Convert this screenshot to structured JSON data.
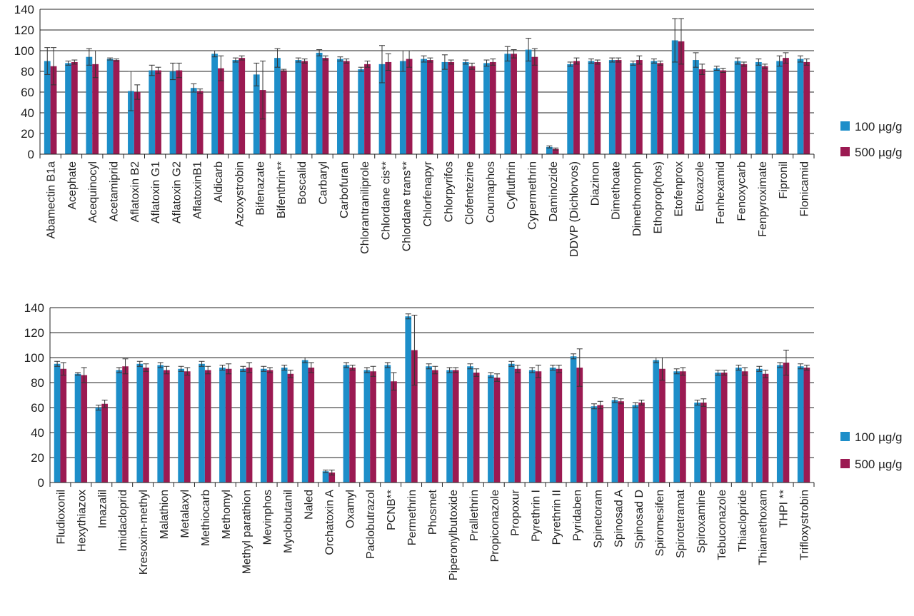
{
  "colors": {
    "series1": "#1d8ec9",
    "series2": "#9b1a52",
    "grid": "#222222",
    "error": "#333333"
  },
  "chart_data": [
    {
      "type": "bar",
      "ylim": [
        0,
        140
      ],
      "yticks": [
        0,
        20,
        40,
        60,
        80,
        100,
        120,
        140
      ],
      "grid": true,
      "legend_position": "right",
      "error_bars": true,
      "categories": [
        "Abamectin B1a",
        "Acephate",
        "Acequinocyl",
        "Acetamiprid",
        "Aflatoxin B2",
        "Aflatoxin G1",
        "Aflatoxin G2",
        "AflatoxinB1",
        "Aldicarb",
        "Azoxystrobin",
        "Bifenazate",
        "Bifenthrin**",
        "Boscalid",
        "Carbaryl",
        "Carbofuran",
        "Chlorantraniliprole",
        "Chlordane cis**",
        "Chlordane trans**",
        "Chlorfenapyr",
        "Chlorpyrifos",
        "Clofentezine",
        "Coumaphos",
        "Cyfluthrin",
        "Cypermethrin",
        "Daminozide",
        "DDVP (Dichlorvos)",
        "Diazinon",
        "Dimethoate",
        "Dimethomorph",
        "Ethoprop(hos)",
        "Etofenprox",
        "Etoxazole",
        "Fenhexamid",
        "Fenoxycarb",
        "Fenpyroximate",
        "Fipronil",
        "Flonicamid"
      ],
      "series": [
        {
          "name": "100 µg/g",
          "values": [
            90,
            88,
            94,
            92,
            61,
            81,
            80,
            64,
            97,
            91,
            77,
            93,
            91,
            98,
            92,
            82,
            87,
            90,
            92,
            89,
            89,
            88,
            97,
            101,
            7,
            87,
            90,
            91,
            88,
            90,
            110,
            91,
            83,
            90,
            89,
            90,
            92
          ],
          "errors": [
            13,
            2,
            8,
            1,
            19,
            5,
            8,
            4,
            3,
            2,
            11,
            9,
            2,
            3,
            2,
            2,
            18,
            10,
            3,
            7,
            2,
            3,
            7,
            11,
            1,
            2,
            2,
            2,
            2,
            2,
            21,
            7,
            2,
            3,
            3,
            5,
            3
          ]
        },
        {
          "name": "500 µg/g",
          "values": [
            85,
            89,
            87,
            91,
            60,
            81,
            81,
            61,
            83,
            93,
            62,
            81,
            90,
            93,
            90,
            87,
            89,
            92,
            91,
            89,
            85,
            89,
            97,
            94,
            5,
            90,
            89,
            91,
            91,
            88,
            109,
            82,
            81,
            87,
            85,
            93,
            89
          ],
          "errors": [
            18,
            2,
            13,
            1,
            7,
            3,
            7,
            2,
            12,
            2,
            28,
            1,
            2,
            2,
            2,
            3,
            8,
            8,
            2,
            2,
            3,
            3,
            4,
            8,
            1,
            3,
            2,
            2,
            4,
            2,
            22,
            5,
            2,
            2,
            2,
            5,
            3
          ]
        }
      ]
    },
    {
      "type": "bar",
      "ylim": [
        0,
        140
      ],
      "yticks": [
        0,
        20,
        40,
        60,
        80,
        100,
        120,
        140
      ],
      "grid": true,
      "legend_position": "right",
      "error_bars": true,
      "categories": [
        "Fludioxonil",
        "Hexythiazox",
        "Imazalil",
        "Imidacloprid",
        "Kresoxim-methyl",
        "Malathion",
        "Metalaxyl",
        "Methiocarb",
        "Methomyl",
        "Methyl parathion",
        "Mevinphos",
        "Myclobutanil",
        "Naled",
        "Orchatoxin A",
        "Oxamyl",
        "Paclobutrazol",
        "PCNB**",
        "Permethrin",
        "Phosmet",
        "Piperonylbutoxide",
        "Prallethrin",
        "Propiconazole",
        "Propoxur",
        "Pyrethrin I",
        "Pyrethrin II",
        "Pyridaben",
        "Spinetoram",
        "Spinosad A",
        "Spinosad D",
        "Spiromesifen",
        "Spirotetramat",
        "Spiroxamine",
        "Tebuconazole",
        "Thiaclopride",
        "Thiamethoxam",
        "THPI **",
        "Trifloxystrobin"
      ],
      "series": [
        {
          "name": "100 µg/g",
          "values": [
            95,
            87,
            60,
            90,
            95,
            94,
            91,
            95,
            92,
            91,
            91,
            92,
            98,
            9,
            94,
            90,
            94,
            133,
            93,
            90,
            93,
            86,
            95,
            90,
            92,
            101,
            61,
            66,
            62,
            98,
            89,
            64,
            88,
            92,
            91,
            94,
            93
          ],
          "errors": [
            2,
            1,
            2,
            2,
            2,
            2,
            2,
            2,
            2,
            2,
            2,
            2,
            2,
            1,
            2,
            2,
            2,
            2,
            2,
            2,
            2,
            2,
            2,
            2,
            2,
            2,
            2,
            2,
            2,
            2,
            2,
            2,
            2,
            2,
            2,
            2,
            2
          ]
        },
        {
          "name": "500 µg/g",
          "values": [
            91,
            86,
            63,
            93,
            92,
            90,
            89,
            90,
            91,
            92,
            90,
            87,
            92,
            8,
            92,
            89,
            81,
            106,
            90,
            90,
            88,
            84,
            91,
            89,
            91,
            92,
            62,
            65,
            64,
            91,
            89,
            64,
            88,
            89,
            87,
            96,
            92
          ],
          "errors": [
            5,
            6,
            3,
            6,
            3,
            3,
            3,
            3,
            4,
            4,
            2,
            3,
            4,
            2,
            2,
            4,
            7,
            28,
            3,
            2,
            3,
            3,
            3,
            5,
            3,
            15,
            3,
            2,
            2,
            9,
            3,
            3,
            2,
            3,
            3,
            10,
            2
          ]
        }
      ]
    }
  ]
}
